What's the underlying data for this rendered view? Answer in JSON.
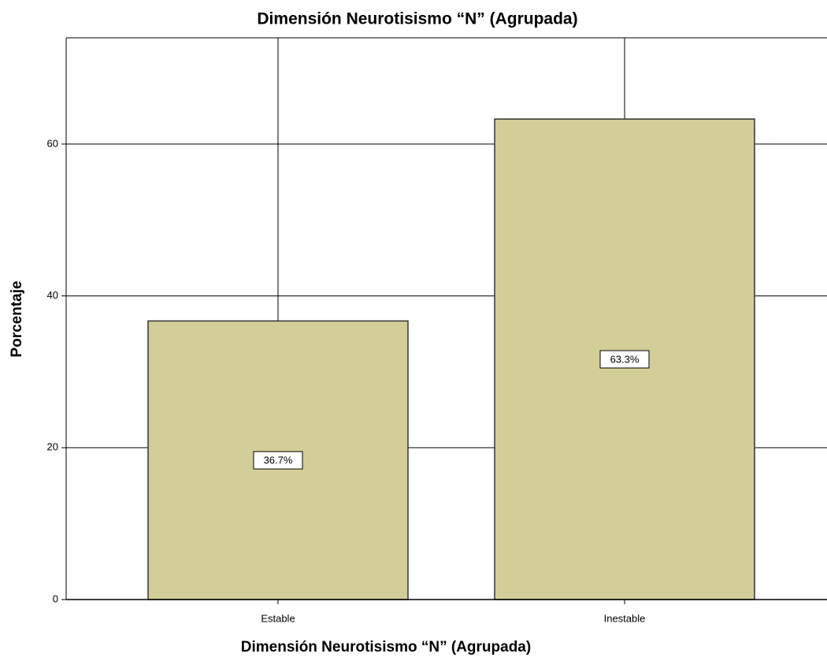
{
  "chart_data": {
    "type": "bar",
    "title": "Dimensión Neurotisismo “N”  (Agrupada)",
    "x_label": "Dimensión Neurotisismo “N”  (Agrupada)",
    "y_label": "Porcentaje",
    "categories": [
      "Estable",
      "Inestable"
    ],
    "values": [
      36.7,
      63.3
    ],
    "value_labels": [
      "36.7%",
      "63.3%"
    ],
    "color": "#d3ce97",
    "ylim": [
      0,
      74
    ],
    "yticks": [
      0,
      20,
      40,
      60
    ],
    "grid": true
  }
}
